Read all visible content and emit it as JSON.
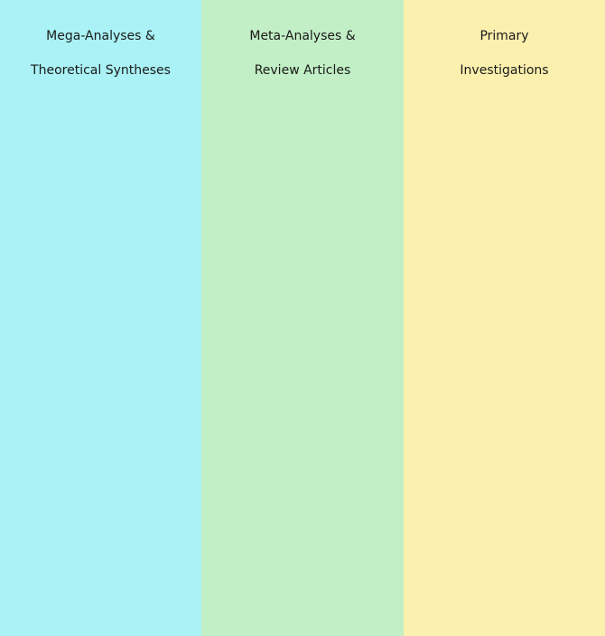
{
  "columns": [
    {
      "title_line1": "Mega-Analyses &",
      "title_line2": "Theoretical Syntheses",
      "color": "#aaf2f5"
    },
    {
      "title_line1": "Meta-Analyses &",
      "title_line2": "Review Articles",
      "color": "#c2efc5"
    },
    {
      "title_line1": "Primary",
      "title_line2": "Investigations",
      "color": "#fbf0ad"
    }
  ]
}
